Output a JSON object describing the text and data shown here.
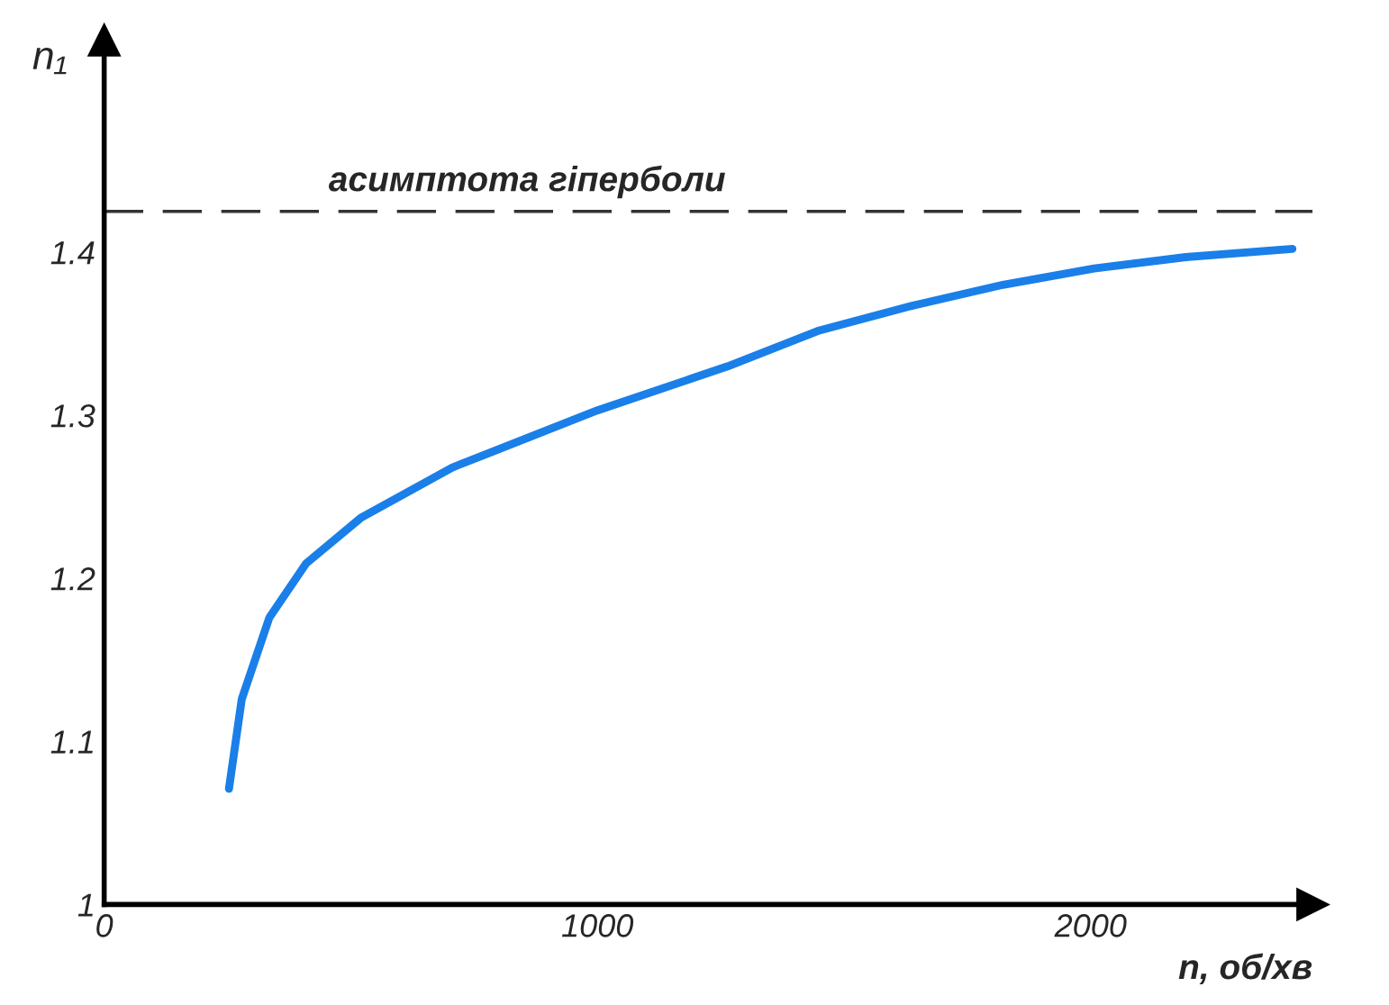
{
  "chart_data": {
    "type": "line",
    "xlabel": "n, об/хв",
    "ylabel": "n₁",
    "x": [
      253,
      279,
      335,
      409,
      520,
      706,
      1000,
      1264,
      1450,
      1636,
      1822,
      2007,
      2193,
      2409
    ],
    "series": [
      {
        "color": "#1a7fe8",
        "values": [
          1.071,
          1.126,
          1.176,
          1.209,
          1.237,
          1.268,
          1.303,
          1.33,
          1.352,
          1.367,
          1.38,
          1.39,
          1.397,
          1.402
        ]
      }
    ],
    "xlim": [
      0,
      2450
    ],
    "ylim": [
      1,
      1.53
    ],
    "xticks": [
      0,
      1000,
      2000
    ],
    "yticks": [
      1,
      1.1,
      1.2,
      1.3,
      1.4
    ],
    "ref_lines": [
      {
        "axis": "y",
        "value": 1.425,
        "label": "асимптота гіперболи",
        "color": "#333333",
        "line_style": "dashed"
      }
    ],
    "grid": false,
    "legend": false,
    "marker": "none",
    "line_style": "solid"
  }
}
